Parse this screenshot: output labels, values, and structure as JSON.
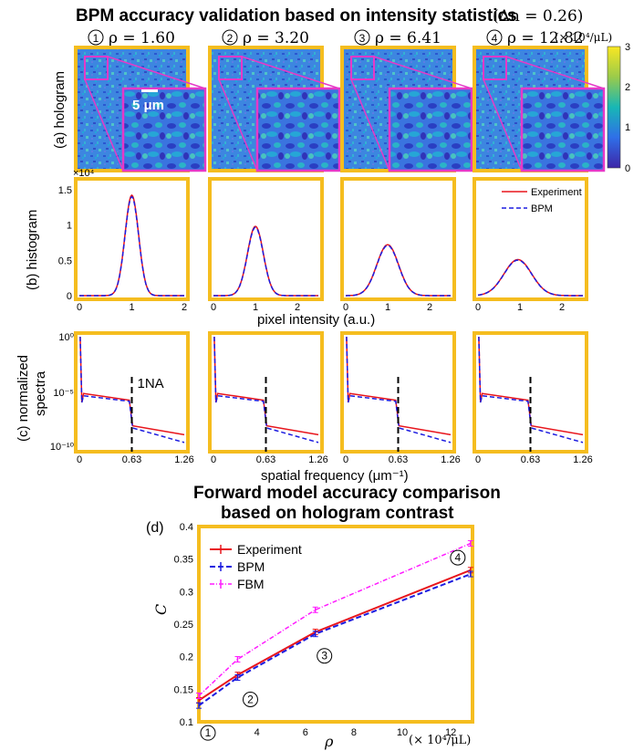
{
  "title": "BPM accuracy validation based on intensity statistics",
  "title_suffix": "(Δn = 0.26)",
  "colorbar_unit": "(× 10⁴/μL)",
  "colorbar_ticks": [
    "3",
    "2",
    "1",
    "0"
  ],
  "columns": [
    {
      "circle": "1",
      "rho_label": "ρ = 1.60"
    },
    {
      "circle": "2",
      "rho_label": "ρ = 3.20"
    },
    {
      "circle": "3",
      "rho_label": "ρ = 6.41"
    },
    {
      "circle": "4",
      "rho_label": "ρ = 12.82"
    }
  ],
  "scale_bar_label": "5 μm",
  "row_a_label": "(a) hologram",
  "row_b_label": "(b) histogram",
  "row_c_label_1": "(c) normalized",
  "row_c_label_2": "spectra",
  "xlabel_b": "pixel intensity (a.u.)",
  "xlabel_c": "spatial frequency (μm⁻¹)",
  "exp_b": "×10⁴",
  "na_label": "1NA",
  "d_title_1": "Forward model accuracy comparison",
  "d_title_2": "based on hologram contrast",
  "d_label": "(d)",
  "d_ylabel": "C",
  "d_xlabel": "ρ",
  "d_xunit": "(× 10⁴/μL)",
  "colors": {
    "frame": "#f5bd1f",
    "experiment": "#e8151c",
    "bpm": "#1c1ce0",
    "fbm": "#ff1aff",
    "zoom": "#e639c8"
  },
  "chart_data": [
    {
      "type": "line",
      "panel": "histogram",
      "xlim": [
        0,
        2.5
      ],
      "ylim": [
        0,
        1.6
      ],
      "y_multiplier": "×10⁴",
      "yticks": [
        "0",
        "0.5",
        "1",
        "1.5"
      ],
      "xticks_first": [
        "0",
        "1",
        "2"
      ],
      "xticks_rest": [
        "0",
        "1",
        "2"
      ],
      "legend": [
        "Experiment",
        "BPM"
      ],
      "series": [
        {
          "rho": 1.6,
          "peak_x": 1.0,
          "peak_y": 1.42,
          "sigma": 0.13
        },
        {
          "rho": 3.2,
          "peak_x": 1.0,
          "peak_y": 0.98,
          "sigma": 0.19
        },
        {
          "rho": 6.41,
          "peak_x": 1.0,
          "peak_y": 0.72,
          "sigma": 0.26
        },
        {
          "rho": 12.82,
          "peak_x": 0.95,
          "peak_y": 0.51,
          "sigma": 0.33
        }
      ]
    },
    {
      "type": "line",
      "panel": "normalized spectra",
      "yscale": "log",
      "yticks": [
        "10⁰",
        "10⁻⁵",
        "10⁻¹⁰"
      ],
      "xticks": [
        "0",
        "0.63",
        "1.26"
      ],
      "cutoff": 0.63,
      "series": [
        {
          "name": "Experiment",
          "plateau": [
            -5.1,
            -5.7
          ],
          "tail": [
            -8.0,
            -8.8
          ]
        },
        {
          "name": "BPM",
          "plateau": [
            -5.3,
            -5.8
          ],
          "tail": [
            -8.2,
            -9.5
          ]
        }
      ]
    },
    {
      "type": "line",
      "panel": "d",
      "x": [
        1.6,
        3.2,
        6.41,
        12.82
      ],
      "xlim": [
        1.6,
        12.9
      ],
      "ylim": [
        0.1,
        0.4
      ],
      "xticks": [
        "2",
        "4",
        "6",
        "8",
        "10",
        "12"
      ],
      "yticks": [
        "0.1",
        "0.15",
        "0.2",
        "0.25",
        "0.3",
        "0.35",
        "0.4"
      ],
      "series": [
        {
          "name": "Experiment",
          "values": [
            0.133,
            0.172,
            0.238,
            0.333
          ]
        },
        {
          "name": "BPM",
          "values": [
            0.125,
            0.168,
            0.235,
            0.327
          ]
        },
        {
          "name": "FBM",
          "values": [
            0.14,
            0.196,
            0.272,
            0.374
          ]
        }
      ],
      "point_labels": [
        "1",
        "2",
        "3",
        "4"
      ]
    }
  ]
}
